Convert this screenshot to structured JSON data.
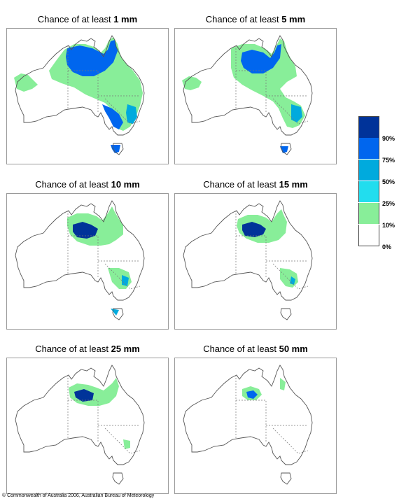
{
  "title_prefix": "Chance of at least",
  "panels": [
    {
      "amount": "1 mm"
    },
    {
      "amount": "5 mm"
    },
    {
      "amount": "10 mm"
    },
    {
      "amount": "15 mm"
    },
    {
      "amount": "25 mm"
    },
    {
      "amount": "50 mm"
    }
  ],
  "legend": {
    "labels": [
      "90%",
      "75%",
      "50%",
      "25%",
      "10%",
      "0%"
    ],
    "colors": [
      "#003399",
      "#0066ee",
      "#00aadd",
      "#22ddee",
      "#88ee99",
      "#ffffff"
    ]
  },
  "copyright": "© Commonwealth of Australia 2006, Australian Bureau of Meteorology"
}
